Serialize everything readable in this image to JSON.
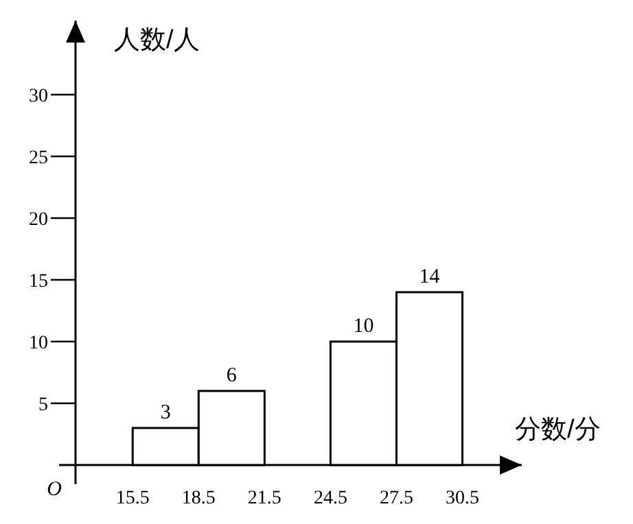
{
  "chart_data": {
    "type": "histogram",
    "xlabel": "分数/分",
    "ylabel": "人数/人",
    "color": "#ffffff",
    "bins": [
      15.5,
      18.5,
      21.5,
      24.5,
      27.5,
      30.5
    ],
    "values": [
      3,
      6,
      0,
      10,
      14
    ],
    "value_labels": [
      "3",
      "6",
      null,
      "10",
      "14"
    ],
    "xlim": [
      12.9,
      33.2
    ],
    "ylim": [
      0,
      36
    ],
    "xticks": [
      15.5,
      18.5,
      21.5,
      24.5,
      27.5,
      30.5
    ],
    "yticks": [
      5,
      10,
      15,
      20,
      25,
      30
    ],
    "annotations": [
      "O"
    ]
  }
}
